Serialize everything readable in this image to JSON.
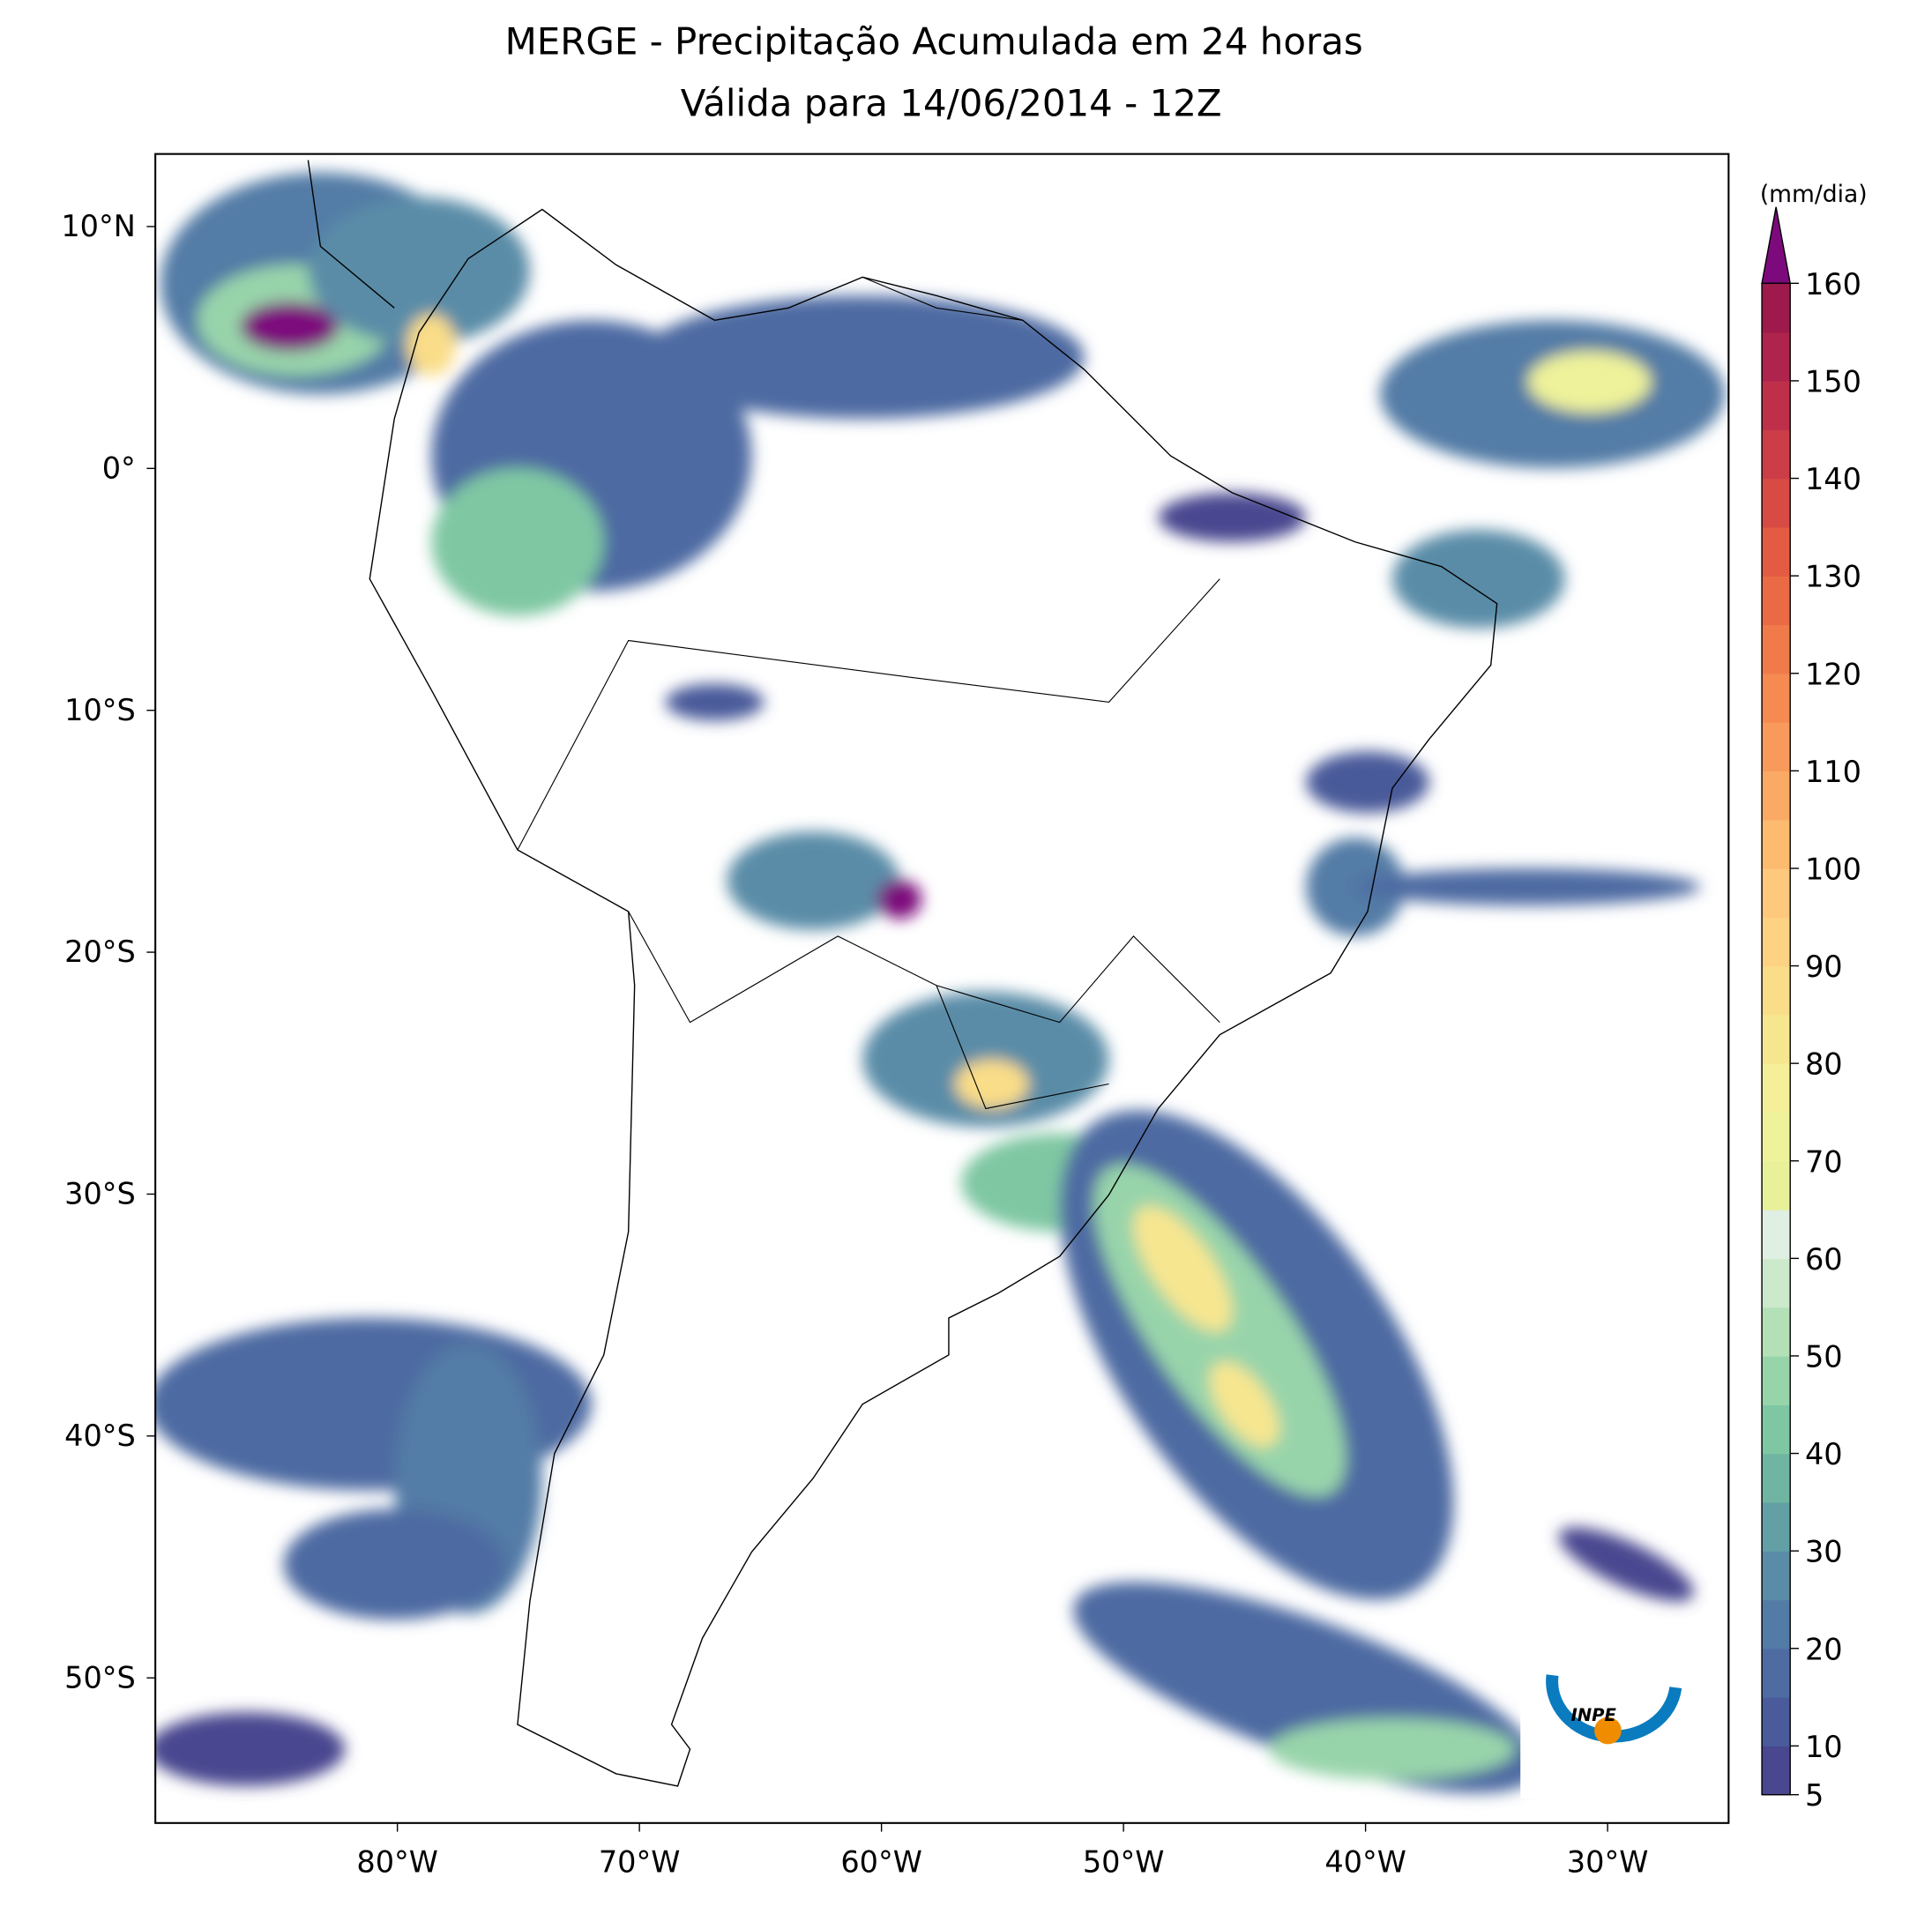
{
  "title": [
    "MERGE - Precipitação Acumulada em 24 horas",
    "Válida para 14/06/2014 - 12Z"
  ],
  "map": {
    "lonlim": [
      -90,
      -25
    ],
    "latlim": [
      -56,
      13
    ],
    "xticks": [
      {
        "value": -80,
        "label": "80°W"
      },
      {
        "value": -70,
        "label": "70°W"
      },
      {
        "value": -60,
        "label": "60°W"
      },
      {
        "value": -50,
        "label": "50°W"
      },
      {
        "value": -40,
        "label": "40°W"
      },
      {
        "value": -30,
        "label": "30°W"
      }
    ],
    "yticks": [
      {
        "value": 10,
        "label": "10°N"
      },
      {
        "value": 0,
        "label": "0°"
      },
      {
        "value": -10,
        "label": "10°S"
      },
      {
        "value": -20,
        "label": "20°S"
      },
      {
        "value": -30,
        "label": "30°S"
      },
      {
        "value": -40,
        "label": "40°S"
      },
      {
        "value": -50,
        "label": "50°S"
      }
    ]
  },
  "colorbar": {
    "label": "(mm/dia)",
    "lim": [
      5,
      160
    ],
    "ticks": [
      5,
      10,
      20,
      30,
      40,
      50,
      60,
      70,
      80,
      90,
      100,
      110,
      120,
      130,
      140,
      150,
      160
    ],
    "colors": [
      "#48478f",
      "#4a5a9a",
      "#4e6ba2",
      "#527ba6",
      "#5a8ca7",
      "#63a0a5",
      "#6fb5a1",
      "#7fc7a3",
      "#98d4aa",
      "#b3e0b6",
      "#cce9cb",
      "#e0efe3",
      "#e8f19a",
      "#eef29a",
      "#f4ef98",
      "#f7e690",
      "#fadd88",
      "#fdd282",
      "#fec97c",
      "#fdbb70",
      "#fbaa66",
      "#f89a5c",
      "#f58a52",
      "#f07a4a",
      "#ea6a45",
      "#e25b42",
      "#d84b44",
      "#cc3d47",
      "#be304a",
      "#ae244c",
      "#9e1a4d"
    ],
    "over_color": "#7d0a7d"
  },
  "logo": {
    "text": "INPE"
  }
}
